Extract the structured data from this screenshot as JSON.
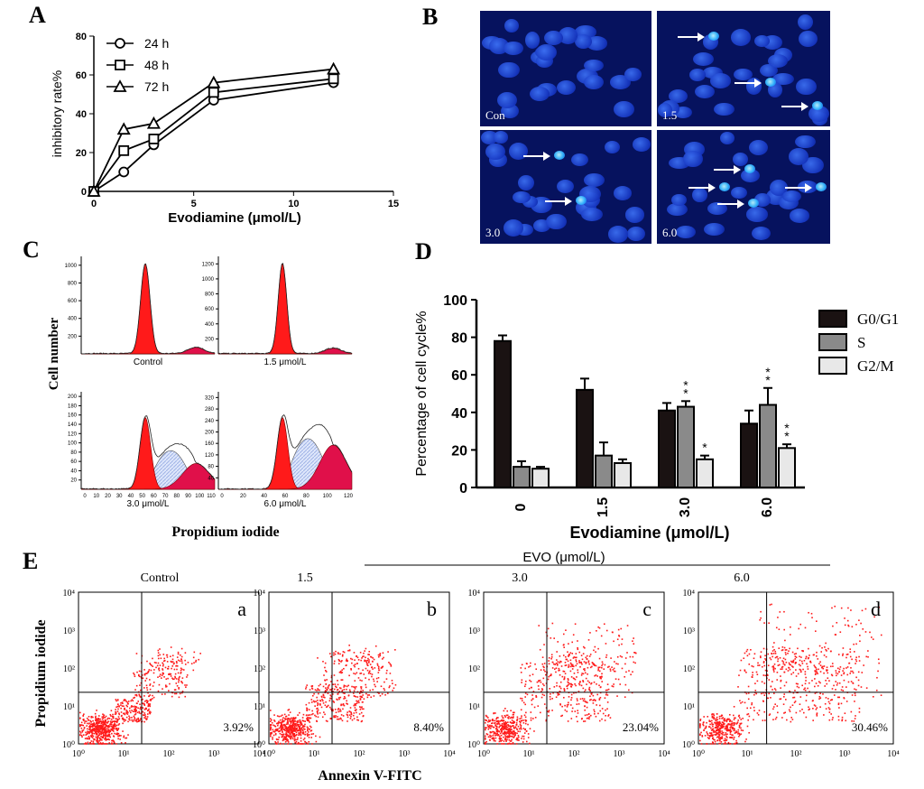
{
  "panel_labels": {
    "A": "A",
    "B": "B",
    "C": "C",
    "D": "D",
    "E": "E"
  },
  "colors": {
    "red": "#ff1a1a",
    "dark_bar": "#1a1212",
    "mid_bar": "#8a8a8a",
    "light_bar": "#e8e8e8",
    "micro_bg": "#06125e",
    "hatch": "#9fb3e6"
  },
  "panel_b": {
    "captions": [
      "Con",
      "1.5",
      "3.0",
      "6.0"
    ]
  },
  "panel_c": {
    "ylabel": "Cell number",
    "xlabel": "Propidium iodide",
    "subtitles": [
      "Control",
      "1.5 μmol/L",
      "3.0 μmol/L",
      "6.0 μmol/L"
    ]
  },
  "panel_e": {
    "ylabel": "Propidium iodide",
    "xlabel": "Annexin V-FITC",
    "header": "EVO (μmol/L)",
    "letters": [
      "a",
      "b",
      "c",
      "d"
    ]
  },
  "chart_data": [
    {
      "type": "line",
      "xlabel": "Evodiamine (μmol/L)",
      "ylabel": "inhibitory rate%",
      "xlim": [
        0,
        15
      ],
      "ylim": [
        0,
        80
      ],
      "xticks": [
        "0",
        "5",
        "10",
        "15"
      ],
      "yticks": [
        "0",
        "20",
        "40",
        "60",
        "80"
      ],
      "legend_position": "top-left",
      "x": [
        0,
        1.5,
        3,
        6,
        12
      ],
      "series": [
        {
          "name": "24 h",
          "marker": "circle",
          "values": [
            0,
            10,
            24,
            47,
            56
          ]
        },
        {
          "name": "48 h",
          "marker": "square",
          "values": [
            0,
            21,
            27,
            51,
            58
          ]
        },
        {
          "name": "72 h",
          "marker": "triangle",
          "values": [
            0,
            32,
            35,
            56,
            63
          ]
        }
      ]
    },
    {
      "type": "bar",
      "xlabel": "Evodiamine (μmol/L)",
      "ylabel": "Percentage of cell cycle%",
      "ylim": [
        0,
        100
      ],
      "yticks": [
        "0",
        "20",
        "40",
        "60",
        "80",
        "100"
      ],
      "categories": [
        "0",
        "1.5",
        "3.0",
        "6.0"
      ],
      "legend_position": "top-right",
      "series": [
        {
          "name": "G0/G1",
          "values": [
            78,
            52,
            41,
            34
          ],
          "errors": [
            3,
            6,
            4,
            7
          ],
          "marks": [
            "",
            "",
            "",
            ""
          ]
        },
        {
          "name": "S",
          "values": [
            11,
            17,
            43,
            44
          ],
          "errors": [
            3,
            7,
            3,
            9
          ],
          "marks": [
            "",
            "",
            "**",
            "**"
          ]
        },
        {
          "name": "G2/M",
          "values": [
            10,
            13,
            15,
            21
          ],
          "errors": [
            1,
            2,
            2,
            2
          ],
          "marks": [
            "",
            "",
            "*",
            "**"
          ]
        }
      ]
    },
    {
      "type": "histogram",
      "xlabel": "Propidium iodide",
      "ylabel": "Cell number",
      "panels": [
        {
          "subtitle": "Control",
          "yticks": [
            "200",
            "400",
            "600",
            "800",
            "1000"
          ],
          "xticks": []
        },
        {
          "subtitle": "1.5 μmol/L",
          "yticks": [
            "200",
            "400",
            "600",
            "800",
            "1000",
            "1200"
          ],
          "xticks": []
        },
        {
          "subtitle": "3.0 μmol/L",
          "yticks": [
            "20",
            "40",
            "60",
            "80",
            "100",
            "120",
            "140",
            "160",
            "180",
            "200"
          ],
          "xticks": [
            "0",
            "10",
            "20",
            "30",
            "40",
            "50",
            "60",
            "70",
            "80",
            "90",
            "100",
            "110"
          ]
        },
        {
          "subtitle": "6.0 μmol/L",
          "yticks": [
            "40",
            "80",
            "120",
            "160",
            "200",
            "240",
            "280",
            "320"
          ],
          "xticks": [
            "0",
            "20",
            "40",
            "60",
            "80",
            "100",
            "120"
          ]
        }
      ]
    },
    {
      "type": "scatter",
      "xlabel": "Annexin V-FITC",
      "ylabel": "Propidium iodide",
      "header": "EVO (μmol/L)",
      "ticks": [
        "10⁰",
        "10¹",
        "10²",
        "10³",
        "10⁴"
      ],
      "panels": [
        {
          "label": "Control",
          "letter": "a",
          "percent": "3.92%"
        },
        {
          "label": "1.5",
          "letter": "b",
          "percent": "8.40%"
        },
        {
          "label": "3.0",
          "letter": "c",
          "percent": "23.04%"
        },
        {
          "label": "6.0",
          "letter": "d",
          "percent": "30.46%"
        }
      ]
    }
  ]
}
